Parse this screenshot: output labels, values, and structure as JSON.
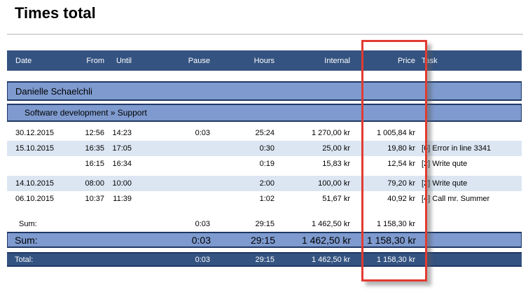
{
  "page": {
    "title": "Times total"
  },
  "colors": {
    "header_bg": "#345381",
    "group_row_bg": "#7E9ACE",
    "alt_row_bg": "#DCE6F2",
    "row_border": "#1F3864",
    "header_text": "#FFFFFF",
    "total_row_bg": "#345381",
    "annotation_red": "#E23B30",
    "title_rule_gray": "#D8D8D8"
  },
  "table": {
    "headers": {
      "date": "Date",
      "from": "From",
      "until": "Until",
      "pause": "Pause",
      "hours": "Hours",
      "internal": "Internal",
      "price": "Price",
      "task": "Task"
    },
    "group_person": "Danielle Schaelchli",
    "group_project": "Software development » Support",
    "rows": [
      {
        "date": "30.12.2015",
        "from": "12:56",
        "until": "14:23",
        "pause": "0:03",
        "hours": "25:24",
        "internal": "1 270,00 kr",
        "price": "1 005,84 kr",
        "task": ""
      },
      {
        "date": "15.10.2015",
        "from": "16:35",
        "until": "17:05",
        "pause": "",
        "hours": "0:30",
        "internal": "25,00 kr",
        "price": "19,80 kr",
        "task": "[6] Error in line 3341"
      },
      {
        "date": "",
        "from": "16:15",
        "until": "16:34",
        "pause": "",
        "hours": "0:19",
        "internal": "15,83 kr",
        "price": "12,54 kr",
        "task": "[2] Write qute"
      },
      {
        "date": "14.10.2015",
        "from": "08:00",
        "until": "10:00",
        "pause": "",
        "hours": "2:00",
        "internal": "100,00 kr",
        "price": "79,20 kr",
        "task": "[2] Write qute"
      },
      {
        "date": "06.10.2015",
        "from": "10:37",
        "until": "11:39",
        "pause": "",
        "hours": "1:02",
        "internal": "51,67 kr",
        "price": "40,92 kr",
        "task": "[4] Call mr. Summer"
      }
    ],
    "sum_row": {
      "label": "Sum:",
      "pause": "0:03",
      "hours": "29:15",
      "internal": "1 462,50 kr",
      "price": "1 158,30 kr"
    },
    "sum_row_highlight": {
      "label": "Sum:",
      "pause": "0:03",
      "hours": "29:15",
      "internal": "1 462,50 kr",
      "price": "1 158,30 kr"
    },
    "total_row": {
      "label": "Total:",
      "pause": "0:03",
      "hours": "29:15",
      "internal": "1 462,50 kr",
      "price": "1 158,30 kr"
    }
  }
}
